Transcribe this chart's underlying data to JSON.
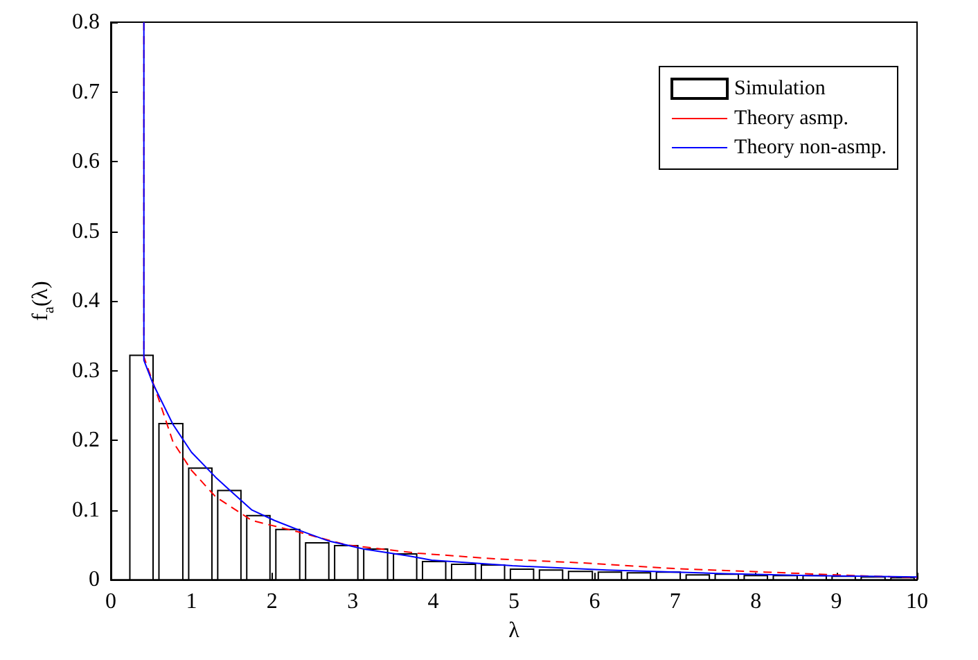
{
  "chart_data": {
    "type": "histogram",
    "xlabel": "λ",
    "ylabel": "f$_{a}$(λ)",
    "xlim": [
      0,
      10
    ],
    "xticks": [
      0,
      1,
      2,
      3,
      4,
      5,
      6,
      7,
      8,
      9,
      10
    ],
    "ylim": [
      0,
      0.8
    ],
    "yticks": [
      0,
      0.1,
      0.2,
      0.3,
      0.4,
      0.5,
      0.6,
      0.7,
      0.8
    ],
    "grid": false,
    "legend": "top right",
    "marker": "none",
    "series": [
      {
        "name": "Simulation",
        "color": "#000000",
        "bins": [
          0.2,
          0.56,
          0.93,
          1.29,
          1.65,
          2.01,
          2.38,
          2.74,
          3.1,
          3.47,
          3.83,
          4.19,
          4.56,
          4.92,
          5.28,
          5.64,
          6.01,
          6.37,
          6.73,
          7.1,
          7.46,
          7.82,
          8.18,
          8.55,
          8.91,
          9.27,
          9.64,
          10
        ],
        "values": [
          0.322,
          0.224,
          0.16,
          0.128,
          0.092,
          0.072,
          0.053,
          0.049,
          0.044,
          0.037,
          0.026,
          0.022,
          0.021,
          0.015,
          0.014,
          0.012,
          0.011,
          0.01,
          0.011,
          0.007,
          0.008,
          0.006,
          0.006,
          0.006,
          0.005,
          0.004,
          0.003
        ]
      },
      {
        "type": "line",
        "name": "Theory asmp.",
        "color": "#ff0000",
        "line_style": "dashed",
        "x": [
          0.41,
          0.41,
          0.58,
          0.77,
          1.0,
          1.3,
          1.75,
          2.31,
          2.92,
          3.81,
          4.76,
          5.87,
          6.99,
          8.11,
          9.21,
          10
        ],
        "values": [
          0.8,
          0.32,
          0.264,
          0.198,
          0.157,
          0.119,
          0.085,
          0.069,
          0.05,
          0.038,
          0.03,
          0.024,
          0.016,
          0.011,
          0.006,
          0.003
        ]
      },
      {
        "type": "line",
        "name": "Theory non-asmp.",
        "color": "#0000ff",
        "line_style": "solid",
        "x": [
          0.41,
          0.41,
          0.52,
          0.77,
          1.0,
          1.3,
          1.47,
          1.75,
          2.03,
          2.36,
          2.69,
          3.14,
          3.7,
          3.98,
          4.98,
          6.15,
          7.54,
          8.66,
          10
        ],
        "values": [
          0.8,
          0.315,
          0.282,
          0.223,
          0.183,
          0.147,
          0.129,
          0.1,
          0.085,
          0.07,
          0.056,
          0.044,
          0.034,
          0.028,
          0.02,
          0.014,
          0.009,
          0.006,
          0.004
        ]
      }
    ]
  }
}
